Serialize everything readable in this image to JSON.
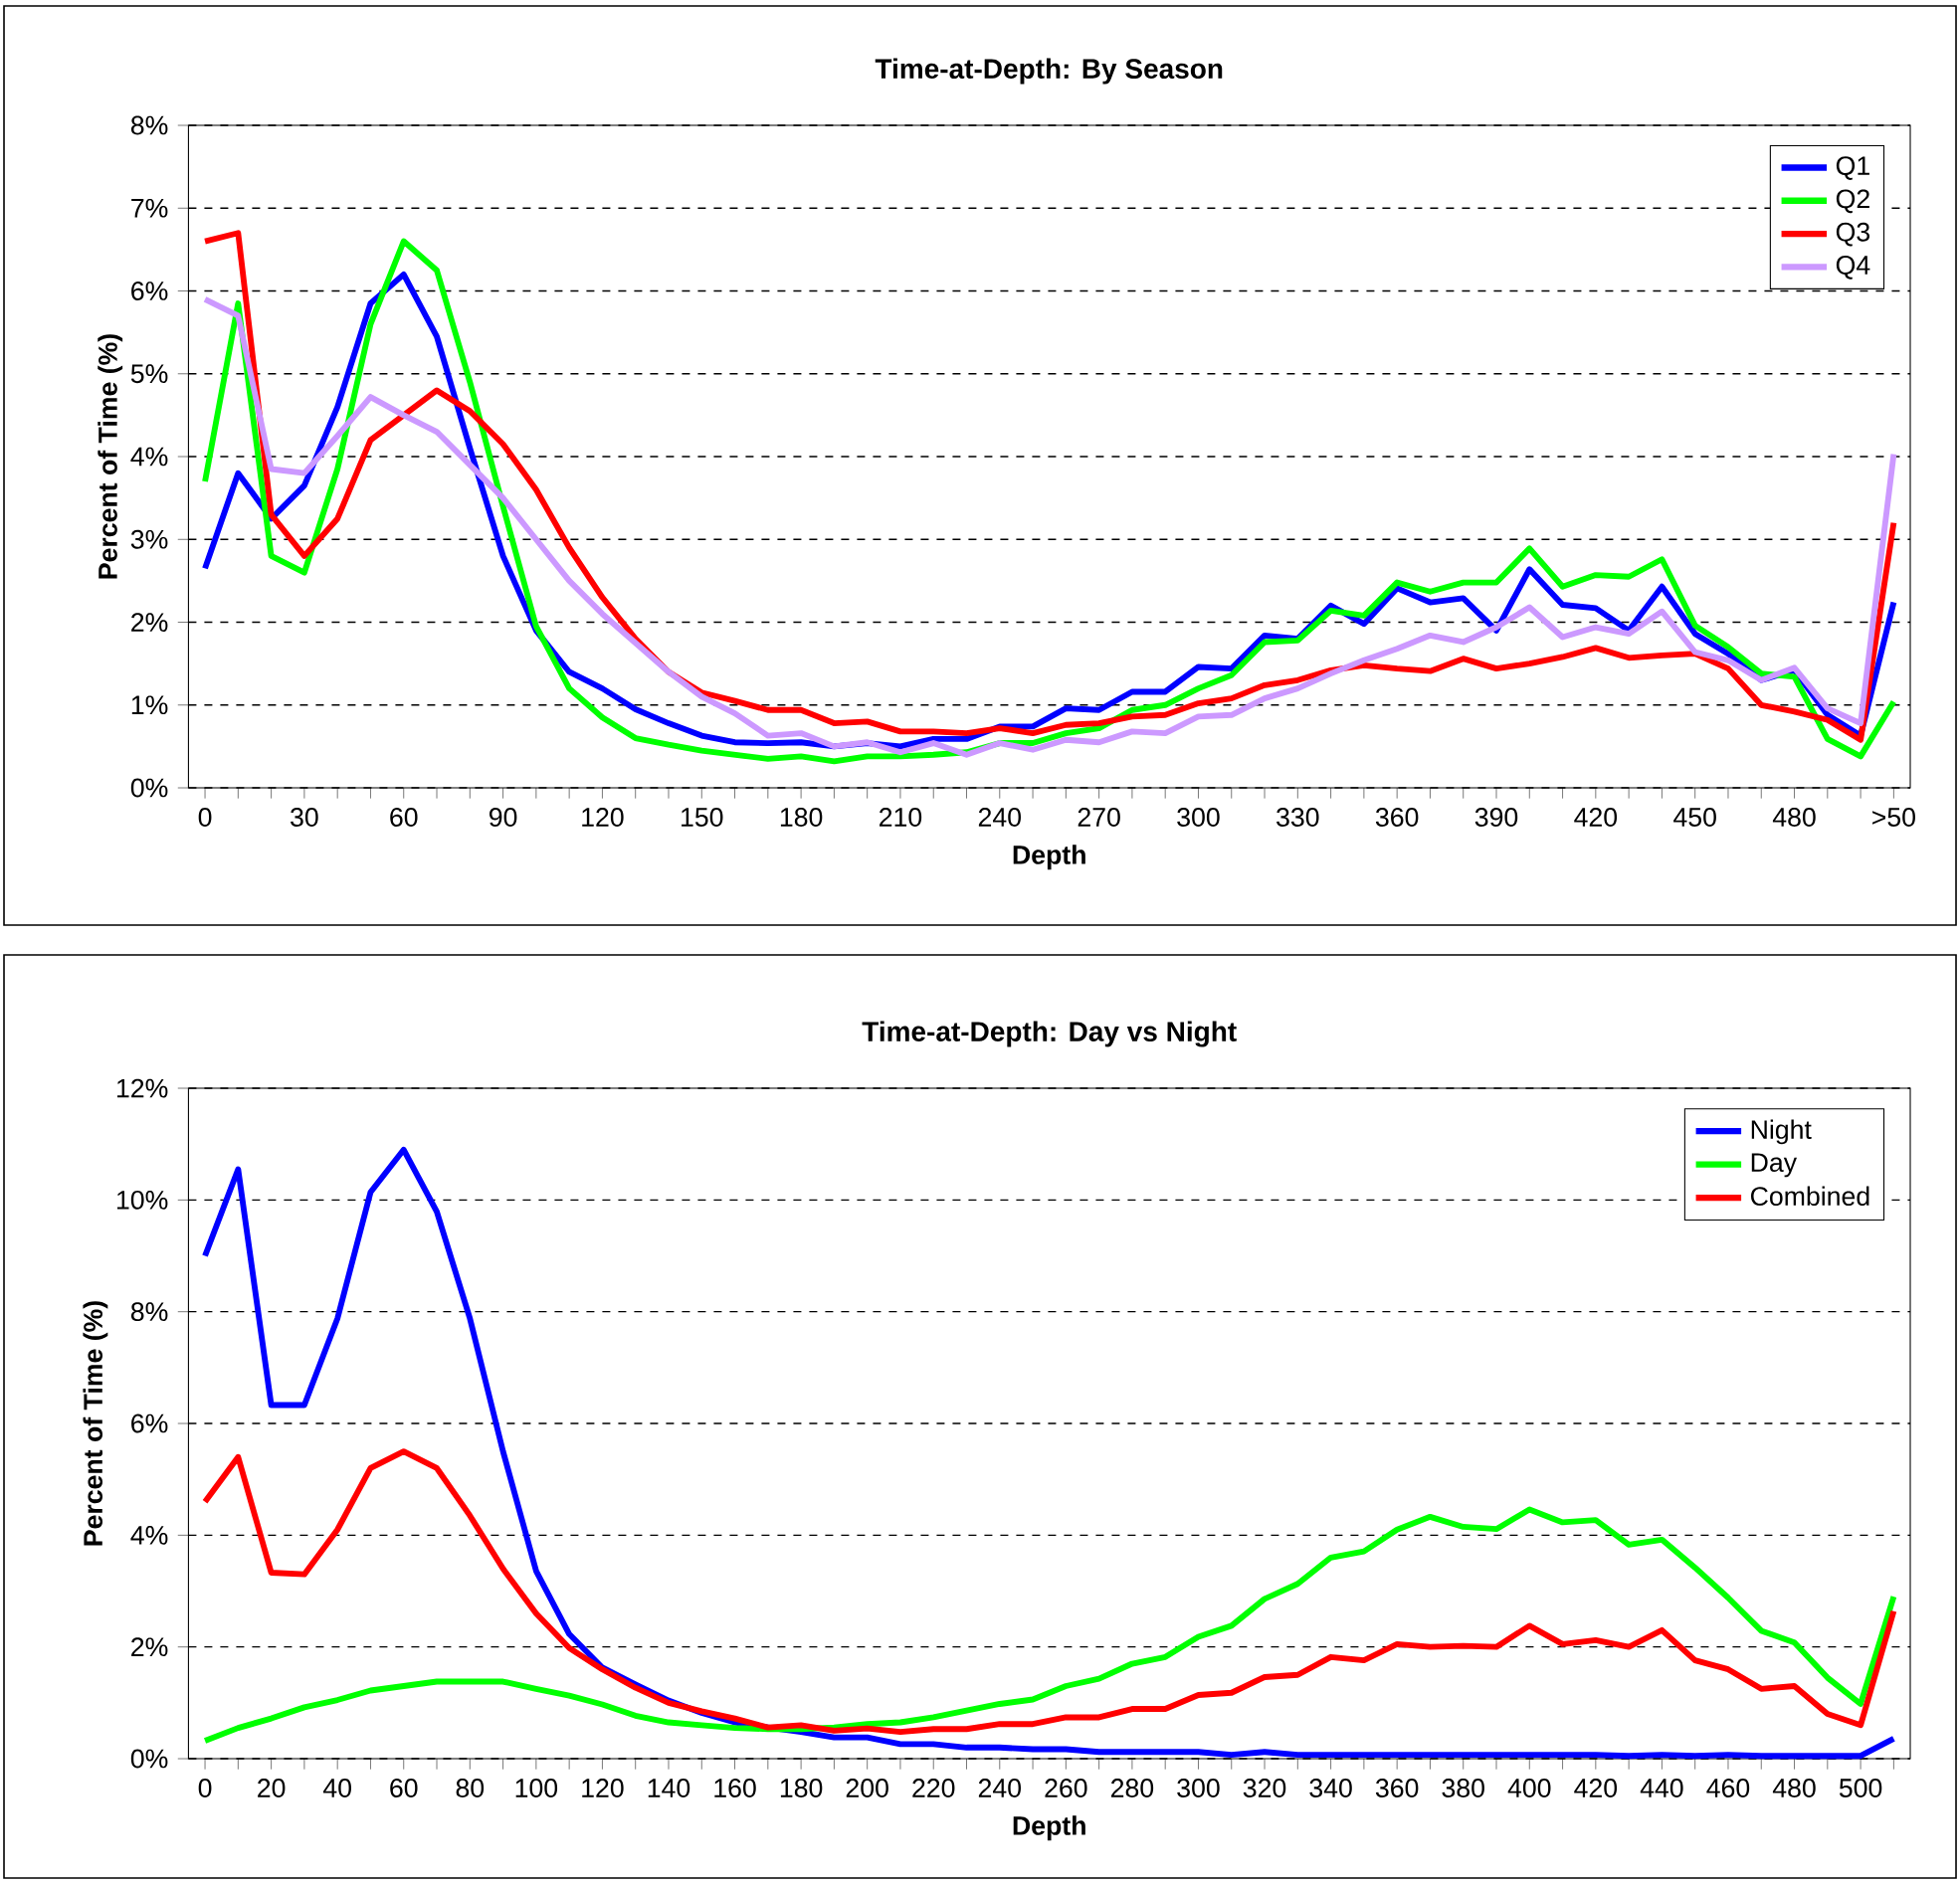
{
  "chart_data": [
    {
      "type": "line",
      "title": "Time-at-Depth: By Season",
      "xlabel": "Depth",
      "ylabel": "Percent of Time (%)",
      "categories": [
        "0",
        null,
        null,
        "30",
        null,
        null,
        "60",
        null,
        null,
        "90",
        null,
        null,
        "120",
        null,
        null,
        "150",
        null,
        null,
        "180",
        null,
        null,
        "210",
        null,
        null,
        "240",
        null,
        null,
        "270",
        null,
        null,
        "300",
        null,
        null,
        "330",
        null,
        null,
        "360",
        null,
        null,
        "390",
        null,
        null,
        "420",
        null,
        null,
        "450",
        null,
        null,
        "480",
        null,
        null,
        ">50"
      ],
      "series": [
        {
          "name": "Q1",
          "color": "#0000ff",
          "values": [
            2.65,
            3.8,
            3.25,
            3.65,
            4.6,
            5.85,
            6.2,
            5.45,
            4.1,
            2.8,
            1.9,
            1.4,
            1.2,
            0.95,
            0.78,
            0.63,
            0.55,
            0.54,
            0.55,
            0.5,
            0.54,
            0.5,
            0.59,
            0.59,
            0.74,
            0.74,
            0.96,
            0.94,
            1.16,
            1.16,
            1.46,
            1.44,
            1.84,
            1.8,
            2.2,
            1.98,
            2.41,
            2.24,
            2.29,
            1.9,
            2.64,
            2.21,
            2.17,
            1.9,
            2.43,
            1.86,
            1.62,
            1.3,
            1.42,
            0.88,
            0.63,
            2.24
          ]
        },
        {
          "name": "Q2",
          "color": "#00ff00",
          "values": [
            3.7,
            5.85,
            2.8,
            2.6,
            3.85,
            5.6,
            6.6,
            6.25,
            4.9,
            3.4,
            1.95,
            1.2,
            0.85,
            0.6,
            0.52,
            0.45,
            0.4,
            0.35,
            0.38,
            0.32,
            0.38,
            0.38,
            0.4,
            0.43,
            0.54,
            0.54,
            0.66,
            0.72,
            0.94,
            1.0,
            1.2,
            1.36,
            1.76,
            1.78,
            2.14,
            2.08,
            2.48,
            2.37,
            2.48,
            2.48,
            2.89,
            2.43,
            2.57,
            2.55,
            2.76,
            1.96,
            1.7,
            1.38,
            1.34,
            0.59,
            0.38,
            1.04
          ]
        },
        {
          "name": "Q3",
          "color": "#ff0000",
          "values": [
            6.6,
            6.7,
            3.3,
            2.8,
            3.25,
            4.2,
            4.5,
            4.8,
            4.55,
            4.15,
            3.6,
            2.9,
            2.3,
            1.8,
            1.4,
            1.15,
            1.05,
            0.94,
            0.94,
            0.78,
            0.8,
            0.68,
            0.68,
            0.66,
            0.72,
            0.66,
            0.76,
            0.78,
            0.86,
            0.88,
            1.02,
            1.08,
            1.24,
            1.3,
            1.42,
            1.48,
            1.44,
            1.41,
            1.56,
            1.44,
            1.5,
            1.58,
            1.69,
            1.57,
            1.6,
            1.62,
            1.44,
            1.0,
            0.92,
            0.82,
            0.58,
            3.2
          ]
        },
        {
          "name": "Q4",
          "color": "#cc99ff",
          "values": [
            5.9,
            5.7,
            3.85,
            3.8,
            4.25,
            4.72,
            4.5,
            4.3,
            3.9,
            3.5,
            3.0,
            2.5,
            2.1,
            1.75,
            1.4,
            1.1,
            0.9,
            0.63,
            0.66,
            0.5,
            0.55,
            0.43,
            0.54,
            0.4,
            0.54,
            0.46,
            0.58,
            0.55,
            0.68,
            0.66,
            0.86,
            0.88,
            1.08,
            1.2,
            1.38,
            1.54,
            1.68,
            1.84,
            1.76,
            1.94,
            2.18,
            1.82,
            1.94,
            1.86,
            2.13,
            1.64,
            1.54,
            1.3,
            1.45,
            0.96,
            0.78,
            4.03
          ]
        }
      ],
      "ylim": [
        0,
        8
      ],
      "yticks": [
        {
          "value": 0,
          "label": "0%"
        },
        {
          "value": 1,
          "label": "1%"
        },
        {
          "value": 2,
          "label": "2%"
        },
        {
          "value": 3,
          "label": "3%"
        },
        {
          "value": 4,
          "label": "4%"
        },
        {
          "value": 5,
          "label": "5%"
        },
        {
          "value": 6,
          "label": "6%"
        },
        {
          "value": 7,
          "label": "7%"
        },
        {
          "value": 8,
          "label": "8%"
        }
      ],
      "grid": "y",
      "legend": "top right",
      "marker": "none",
      "line_style": "solid"
    },
    {
      "type": "line",
      "title": "Time-at-Depth: Day vs Night",
      "xlabel": "Depth",
      "ylabel": "Percent of Time (%)",
      "categories": [
        "0",
        null,
        "20",
        null,
        "40",
        null,
        "60",
        null,
        "80",
        null,
        "100",
        null,
        "120",
        null,
        "140",
        null,
        "160",
        null,
        "180",
        null,
        "200",
        null,
        "220",
        null,
        "240",
        null,
        "260",
        null,
        "280",
        null,
        "300",
        null,
        "320",
        null,
        "340",
        null,
        "360",
        null,
        "380",
        null,
        "400",
        null,
        "420",
        null,
        "440",
        null,
        "460",
        null,
        "480",
        null,
        "500",
        null
      ],
      "series": [
        {
          "name": "Night",
          "color": "#0000ff",
          "values": [
            9.0,
            10.55,
            6.33,
            6.33,
            7.88,
            10.14,
            10.9,
            9.79,
            7.88,
            5.5,
            3.36,
            2.23,
            1.63,
            1.33,
            1.04,
            0.82,
            0.65,
            0.56,
            0.48,
            0.38,
            0.38,
            0.26,
            0.26,
            0.2,
            0.2,
            0.17,
            0.17,
            0.12,
            0.12,
            0.12,
            0.12,
            0.07,
            0.12,
            0.07,
            0.07,
            0.07,
            0.07,
            0.07,
            0.07,
            0.07,
            0.07,
            0.07,
            0.07,
            0.05,
            0.07,
            0.05,
            0.07,
            0.05,
            0.05,
            0.05,
            0.05,
            0.36
          ]
        },
        {
          "name": "Day",
          "color": "#00ff00",
          "values": [
            0.32,
            0.55,
            0.72,
            0.92,
            1.05,
            1.22,
            1.3,
            1.38,
            1.38,
            1.38,
            1.25,
            1.13,
            0.97,
            0.77,
            0.65,
            0.6,
            0.55,
            0.53,
            0.53,
            0.56,
            0.62,
            0.65,
            0.74,
            0.86,
            0.98,
            1.06,
            1.3,
            1.43,
            1.7,
            1.82,
            2.18,
            2.38,
            2.86,
            3.13,
            3.6,
            3.71,
            4.1,
            4.33,
            4.15,
            4.11,
            4.46,
            4.23,
            4.27,
            3.83,
            3.92,
            3.42,
            2.88,
            2.29,
            2.08,
            1.45,
            0.98,
            2.9
          ]
        },
        {
          "name": "Combined",
          "color": "#ff0000",
          "values": [
            4.6,
            5.4,
            3.33,
            3.3,
            4.1,
            5.2,
            5.5,
            5.2,
            4.35,
            3.4,
            2.6,
            1.98,
            1.6,
            1.27,
            1.0,
            0.85,
            0.72,
            0.56,
            0.6,
            0.5,
            0.54,
            0.48,
            0.53,
            0.53,
            0.62,
            0.62,
            0.74,
            0.74,
            0.89,
            0.89,
            1.14,
            1.18,
            1.46,
            1.5,
            1.82,
            1.76,
            2.05,
            2.0,
            2.02,
            2.0,
            2.38,
            2.05,
            2.12,
            2.0,
            2.3,
            1.76,
            1.6,
            1.25,
            1.3,
            0.8,
            0.6,
            2.64
          ]
        }
      ],
      "ylim": [
        0,
        12
      ],
      "yticks": [
        {
          "value": 0,
          "label": "0%"
        },
        {
          "value": 2,
          "label": "2%"
        },
        {
          "value": 4,
          "label": "4%"
        },
        {
          "value": 6,
          "label": "6%"
        },
        {
          "value": 8,
          "label": "8%"
        },
        {
          "value": 10,
          "label": "10%"
        },
        {
          "value": 12,
          "label": "12%"
        }
      ],
      "grid": "y",
      "legend": "top right",
      "marker": "none",
      "line_style": "solid"
    }
  ]
}
